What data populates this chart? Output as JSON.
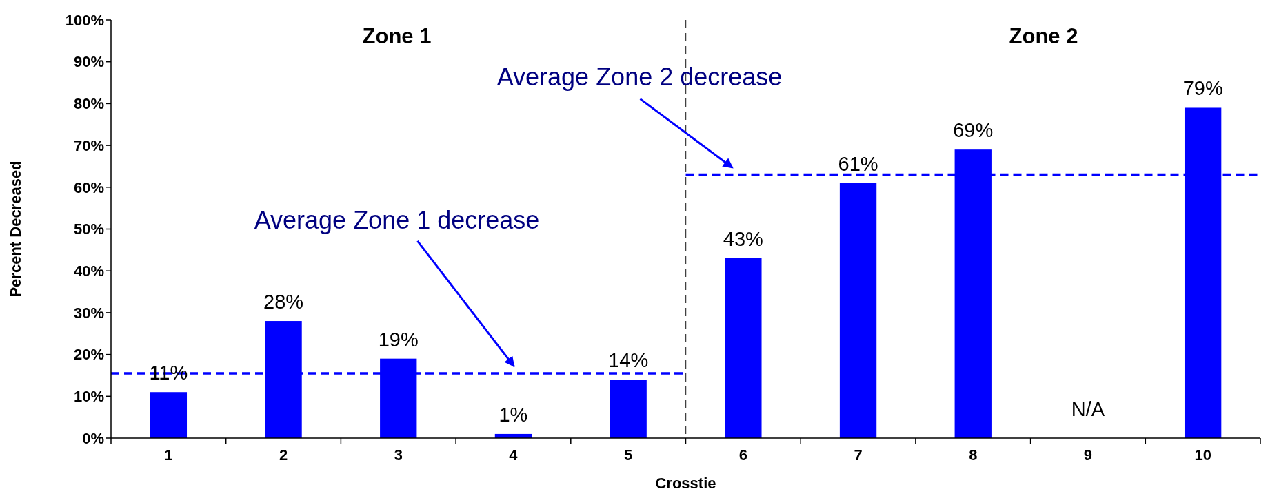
{
  "chart_data": {
    "type": "bar",
    "xlabel": "Crosstie",
    "ylabel": "Percent Decreased",
    "x": [
      1,
      2,
      3,
      4,
      5,
      6,
      7,
      8,
      9,
      10
    ],
    "values": [
      11,
      28,
      19,
      1,
      14,
      43,
      61,
      69,
      null,
      79
    ],
    "value_labels": [
      "11%",
      "28%",
      "19%",
      "1%",
      "14%",
      "43%",
      "61%",
      "69%",
      "N/A",
      "79%"
    ],
    "color": "#0000ff",
    "xlim": [
      0.5,
      10.5
    ],
    "xticks": [
      1,
      2,
      3,
      4,
      5,
      6,
      7,
      8,
      9,
      10
    ],
    "ylim": [
      0,
      100
    ],
    "yticks": [
      {
        "value": 0,
        "label": "0%"
      },
      {
        "value": 10,
        "label": "10%"
      },
      {
        "value": 20,
        "label": "20%"
      },
      {
        "value": 30,
        "label": "30%"
      },
      {
        "value": 40,
        "label": "40%"
      },
      {
        "value": 50,
        "label": "50%"
      },
      {
        "value": 60,
        "label": "60%"
      },
      {
        "value": 70,
        "label": "70%"
      },
      {
        "value": 80,
        "label": "80%"
      },
      {
        "value": 90,
        "label": "90%"
      },
      {
        "value": 100,
        "label": "100%"
      }
    ],
    "annotations": [
      "Zone 1",
      "Zone 2",
      "Average Zone 1 decrease",
      "Average Zone 2 decrease"
    ],
    "ref_lines": [
      {
        "axis": "x",
        "value": 5.5,
        "color": "#404040",
        "line_style": "dashed"
      },
      {
        "axis": "y",
        "value": 15.5,
        "color": "#0000ff",
        "line_style": "dashed"
      },
      {
        "axis": "y",
        "value": 63,
        "color": "#0000ff",
        "line_style": "dashed"
      }
    ],
    "grid": false
  }
}
